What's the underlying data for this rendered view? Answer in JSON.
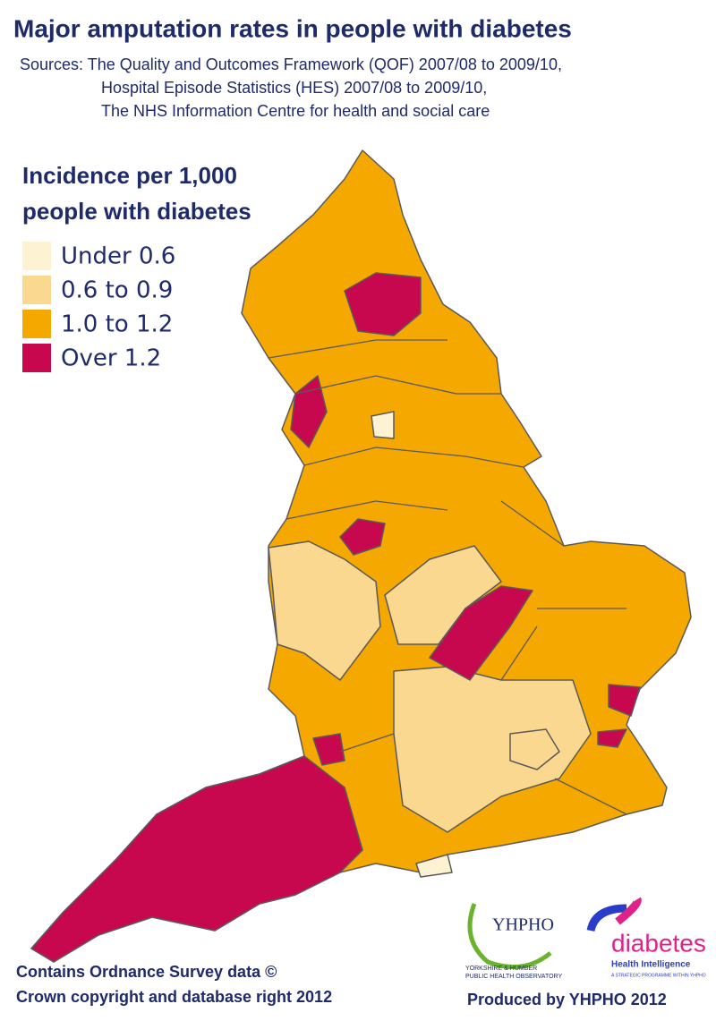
{
  "header": {
    "title": "Major amputation rates in people with diabetes",
    "sources": [
      "Sources: The Quality and Outcomes Framework (QOF) 2007/08 to 2009/10,",
      "Hospital Episode Statistics (HES) 2007/08 to 2009/10,",
      "The NHS Information Centre for health and social care"
    ]
  },
  "legend": {
    "title": [
      "Incidence per 1,000",
      "people with diabetes"
    ],
    "items": [
      {
        "label": "Under 0.6",
        "color": "#fdf3d3"
      },
      {
        "label": "0.6 to 0.9",
        "color": "#fbd88f"
      },
      {
        "label": "1.0 to 1.2",
        "color": "#f5a800"
      },
      {
        "label": "Over 1.2",
        "color": "#c7084f"
      }
    ]
  },
  "logos": {
    "yhpho": "YHPHO",
    "yhpho_sub": [
      "YORKSHIRE & HUMBER",
      "PUBLIC HEALTH OBSERVATORY"
    ],
    "diabetes": "diabetes",
    "diabetes_sub": "Health Intelligence",
    "diabetes_tag": "A STRATEGIC PROGRAMME WITHIN YHPHO"
  },
  "footer": {
    "copyright": [
      "Contains Ordnance Survey data ©",
      "Crown copyright and database right 2012"
    ],
    "produced": "Produced by YHPHO 2012"
  }
}
